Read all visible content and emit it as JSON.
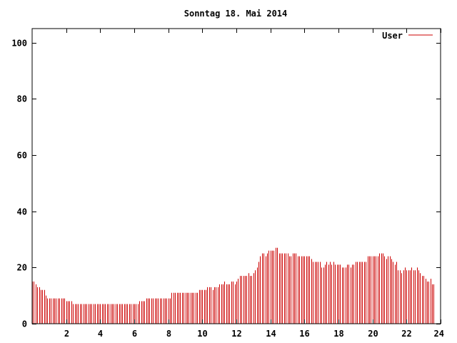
{
  "chart_data": {
    "type": "bar",
    "title": "Sonntag 18. Mai 2014",
    "xlabel": "",
    "ylabel": "",
    "xlim": [
      0,
      24
    ],
    "ylim": [
      0,
      105
    ],
    "x_ticks": [
      2,
      4,
      6,
      8,
      10,
      12,
      14,
      16,
      18,
      20,
      22,
      24
    ],
    "y_ticks": [
      0,
      20,
      40,
      60,
      80,
      100
    ],
    "grid": false,
    "legend_position": "top-right",
    "series": [
      {
        "name": "User",
        "color": "#cc0000",
        "x_start": 0,
        "x_step": 0.1,
        "values": [
          15,
          15,
          14,
          13,
          13,
          12,
          12,
          12,
          10,
          9,
          9,
          9,
          9,
          9,
          9,
          9,
          9,
          9,
          9,
          9,
          8,
          8,
          8,
          8,
          7,
          7,
          7,
          7,
          7,
          7,
          7,
          7,
          7,
          7,
          7,
          7,
          7,
          7,
          7,
          7,
          7,
          7,
          7,
          7,
          7,
          7,
          7,
          7,
          7,
          7,
          7,
          7,
          7,
          7,
          7,
          7,
          7,
          7,
          7,
          7,
          7,
          7,
          7,
          8,
          8,
          8,
          8,
          9,
          9,
          9,
          9,
          9,
          9,
          9,
          9,
          9,
          9,
          9,
          9,
          9,
          9,
          9,
          11,
          11,
          11,
          11,
          11,
          11,
          11,
          11,
          11,
          11,
          11,
          11,
          11,
          11,
          11,
          11,
          12,
          12,
          12,
          12,
          12,
          13,
          13,
          13,
          12,
          13,
          13,
          13,
          14,
          14,
          14,
          15,
          14,
          14,
          14,
          15,
          15,
          14,
          15,
          16,
          17,
          17,
          17,
          17,
          17,
          18,
          17,
          17,
          18,
          19,
          20,
          22,
          24,
          25,
          25,
          24,
          25,
          26,
          26,
          26,
          26,
          27,
          27,
          25,
          25,
          25,
          25,
          25,
          25,
          24,
          24,
          25,
          25,
          25,
          24,
          24,
          24,
          24,
          24,
          24,
          24,
          24,
          23,
          22,
          22,
          22,
          22,
          22,
          20,
          20,
          21,
          22,
          21,
          22,
          21,
          22,
          21,
          21,
          21,
          21,
          20,
          20,
          20,
          21,
          21,
          20,
          21,
          21,
          22,
          22,
          22,
          22,
          22,
          22,
          22,
          24,
          24,
          24,
          24,
          24,
          24,
          24,
          25,
          25,
          25,
          24,
          23,
          24,
          24,
          23,
          22,
          21,
          22,
          19,
          19,
          18,
          19,
          20,
          19,
          19,
          19,
          20,
          19,
          19,
          20,
          19,
          18,
          17,
          17,
          16,
          15,
          15,
          16,
          14,
          14
        ]
      }
    ]
  }
}
